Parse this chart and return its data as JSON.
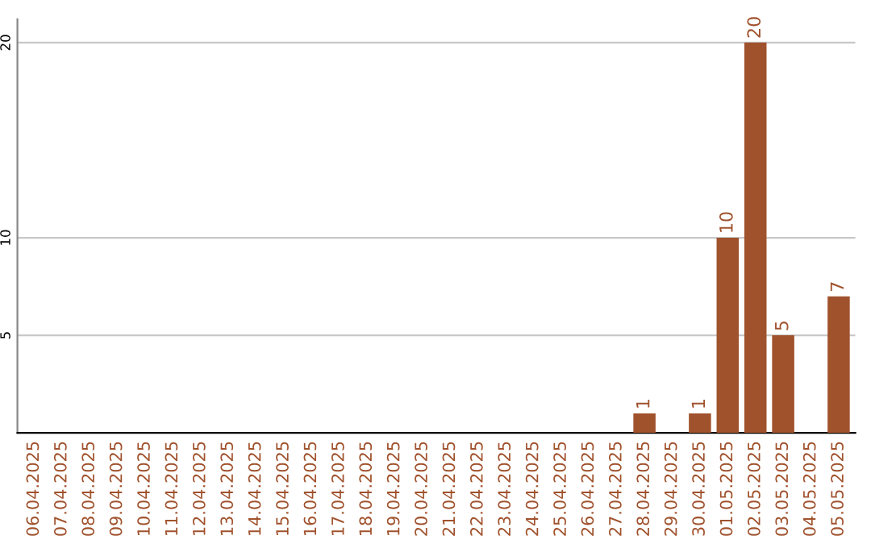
{
  "chart_data": {
    "type": "bar",
    "categories": [
      "06.04.2025",
      "07.04.2025",
      "08.04.2025",
      "09.04.2025",
      "10.04.2025",
      "11.04.2025",
      "12.04.2025",
      "13.04.2025",
      "14.04.2025",
      "15.04.2025",
      "16.04.2025",
      "17.04.2025",
      "18.04.2025",
      "19.04.2025",
      "20.04.2025",
      "21.04.2025",
      "22.04.2025",
      "23.04.2025",
      "24.04.2025",
      "25.04.2025",
      "26.04.2025",
      "27.04.2025",
      "28.04.2025",
      "29.04.2025",
      "30.04.2025",
      "01.05.2025",
      "02.05.2025",
      "03.05.2025",
      "04.05.2025",
      "05.05.2025"
    ],
    "values": [
      0,
      0,
      0,
      0,
      0,
      0,
      0,
      0,
      0,
      0,
      0,
      0,
      0,
      0,
      0,
      0,
      0,
      0,
      0,
      0,
      0,
      0,
      1,
      0,
      1,
      10,
      20,
      5,
      0,
      7
    ],
    "value_labels": [
      null,
      null,
      null,
      null,
      null,
      null,
      null,
      null,
      null,
      null,
      null,
      null,
      null,
      null,
      null,
      null,
      null,
      null,
      null,
      null,
      null,
      null,
      "1",
      null,
      "1",
      "10",
      "20",
      "5",
      null,
      "7"
    ],
    "color": "#a0522d",
    "ylim": [
      0,
      21.2
    ],
    "yticks": [
      5,
      10,
      20
    ],
    "grid": "y"
  }
}
